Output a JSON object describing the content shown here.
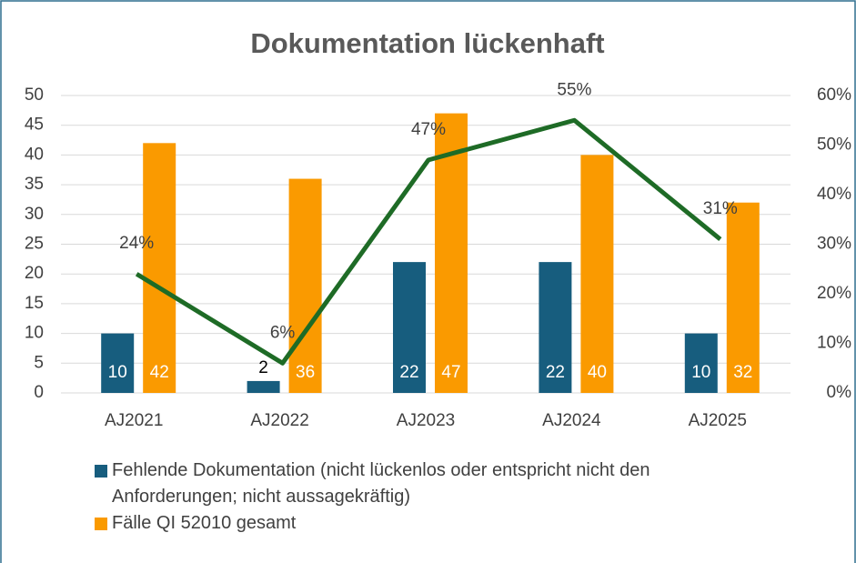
{
  "chart_data": {
    "type": "bar",
    "title": "Dokumentation lückenhaft",
    "categories": [
      "AJ2021",
      "AJ2022",
      "AJ2023",
      "AJ2024",
      "AJ2025"
    ],
    "series": [
      {
        "name": "Fehlende Dokumentation (nicht lückenlos oder entspricht nicht den Anforderungen; nicht aussagekräftig)",
        "color": "#175d7e",
        "values": [
          10,
          2,
          22,
          22,
          10
        ]
      },
      {
        "name": "Fälle QI 52010 gesamt",
        "color": "#fa9a00",
        "values": [
          42,
          36,
          47,
          40,
          32
        ]
      },
      {
        "type": "line",
        "axis": "y2",
        "color": "#1e6b26",
        "values": [
          24,
          6,
          47,
          55,
          31
        ],
        "value_labels": [
          "24%",
          "6%",
          "47%",
          "55%",
          "31%"
        ]
      }
    ],
    "ylim": [
      0,
      50
    ],
    "yticks": [
      0,
      5,
      10,
      15,
      20,
      25,
      30,
      35,
      40,
      45,
      50
    ],
    "y2lim": [
      0,
      60
    ],
    "y2ticks": [
      {
        "value": 0,
        "label": "0%"
      },
      {
        "value": 10,
        "label": "10%"
      },
      {
        "value": 20,
        "label": "20%"
      },
      {
        "value": 30,
        "label": "30%"
      },
      {
        "value": 40,
        "label": "40%"
      },
      {
        "value": 50,
        "label": "50%"
      },
      {
        "value": 60,
        "label": "60%"
      }
    ],
    "grid": true,
    "legend": "bottom"
  }
}
